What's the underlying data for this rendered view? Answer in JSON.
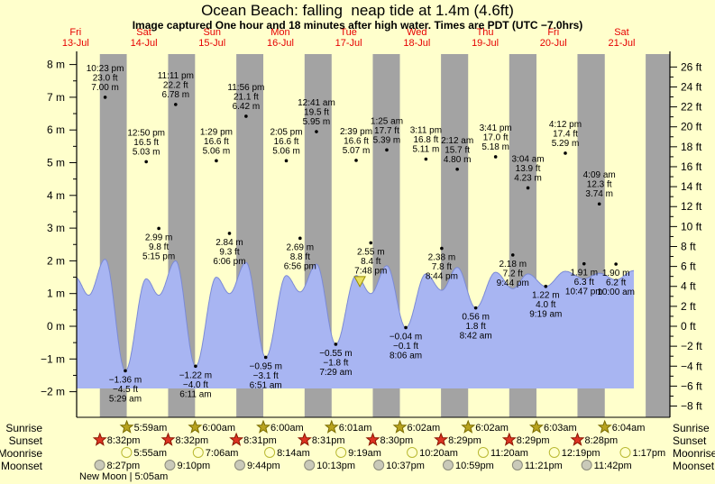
{
  "header": {
    "title": "Ocean Beach: falling  neap tide at 1.4m (4.6ft)",
    "subtitle": "Image captured One hour and 18 minutes after high water. Times are PDT (UTC −7.0hrs)"
  },
  "days": [
    {
      "label": "Fri",
      "date": "13-Jul"
    },
    {
      "label": "Sat",
      "date": "14-Jul"
    },
    {
      "label": "Sun",
      "date": "15-Jul"
    },
    {
      "label": "Mon",
      "date": "16-Jul"
    },
    {
      "label": "Tue",
      "date": "17-Jul"
    },
    {
      "label": "Wed",
      "date": "18-Jul"
    },
    {
      "label": "Thu",
      "date": "19-Jul"
    },
    {
      "label": "Fri",
      "date": "20-Jul"
    },
    {
      "label": "Sat",
      "date": "21-Jul"
    }
  ],
  "chart_data": {
    "type": "area",
    "y_axis_m": {
      "unit": "m",
      "ticks": [
        {
          "v": 8,
          "label": "8 m"
        },
        {
          "v": 7,
          "label": "7 m"
        },
        {
          "v": 6,
          "label": "6 m"
        },
        {
          "v": 5,
          "label": "5 m"
        },
        {
          "v": 4,
          "label": "4 m"
        },
        {
          "v": 3,
          "label": "3 m"
        },
        {
          "v": 2,
          "label": "2 m"
        },
        {
          "v": 1,
          "label": "1 m"
        },
        {
          "v": 0,
          "label": "0 m"
        },
        {
          "v": -1,
          "label": "−1 m"
        },
        {
          "v": -2,
          "label": "−2 m"
        }
      ]
    },
    "y_axis_ft": {
      "unit": "ft",
      "ticks": [
        {
          "v": 26,
          "label": "26 ft"
        },
        {
          "v": 24,
          "label": "24 ft"
        },
        {
          "v": 22,
          "label": "22 ft"
        },
        {
          "v": 20,
          "label": "20 ft"
        },
        {
          "v": 18,
          "label": "18 ft"
        },
        {
          "v": 16,
          "label": "16 ft"
        },
        {
          "v": 14,
          "label": "14 ft"
        },
        {
          "v": 12,
          "label": "12 ft"
        },
        {
          "v": 10,
          "label": "10 ft"
        },
        {
          "v": 8,
          "label": "8 ft"
        },
        {
          "v": 6,
          "label": "6 ft"
        },
        {
          "v": 4,
          "label": "4 ft"
        },
        {
          "v": 2,
          "label": "2 ft"
        },
        {
          "v": 0,
          "label": "0 ft"
        },
        {
          "v": -2,
          "label": "−2 ft"
        },
        {
          "v": -4,
          "label": "−4 ft"
        },
        {
          "v": -6,
          "label": "−6 ft"
        },
        {
          "v": -8,
          "label": "−8 ft"
        }
      ]
    },
    "tide_events": [
      {
        "type": "high",
        "day": 0,
        "time": "10:23 pm",
        "ft": "23.0 ft",
        "m": "7.00 m",
        "height_m": 7.0
      },
      {
        "type": "high",
        "day": 1,
        "time": "12:50 pm",
        "ft": "16.5 ft",
        "m": "5.03 m",
        "height_m": 5.03
      },
      {
        "type": "high",
        "day": 1,
        "time": "11:11 pm",
        "ft": "22.2 ft",
        "m": "6.78 m",
        "height_m": 6.78
      },
      {
        "type": "high",
        "day": 2,
        "time": "1:29 pm",
        "ft": "16.6 ft",
        "m": "5.06 m",
        "height_m": 5.06
      },
      {
        "type": "high",
        "day": 2,
        "time": "11:56 pm",
        "ft": "21.1 ft",
        "m": "6.42 m",
        "height_m": 6.42
      },
      {
        "type": "high",
        "day": 3,
        "time": "2:05 pm",
        "ft": "16.6 ft",
        "m": "5.06 m",
        "height_m": 5.06
      },
      {
        "type": "high",
        "day": 4,
        "time": "12:41 am",
        "ft": "19.5 ft",
        "m": "5.95 m",
        "height_m": 5.95
      },
      {
        "type": "high",
        "day": 4,
        "time": "2:39 pm",
        "ft": "16.6 ft",
        "m": "5.07 m",
        "height_m": 5.07
      },
      {
        "type": "high",
        "day": 5,
        "time": "1:25 am",
        "ft": "17.7 ft",
        "m": "5.39 m",
        "height_m": 5.39
      },
      {
        "type": "high",
        "day": 5,
        "time": "3:11 pm",
        "ft": "16.8 ft",
        "m": "5.11 m",
        "height_m": 5.11
      },
      {
        "type": "high",
        "day": 6,
        "time": "2:12 am",
        "ft": "15.7 ft",
        "m": "4.80 m",
        "height_m": 4.8
      },
      {
        "type": "high",
        "day": 6,
        "time": "3:41 pm",
        "ft": "17.0 ft",
        "m": "5.18 m",
        "height_m": 5.18
      },
      {
        "type": "high",
        "day": 7,
        "time": "3:04 am",
        "ft": "13.9 ft",
        "m": "4.23 m",
        "height_m": 4.23
      },
      {
        "type": "high",
        "day": 7,
        "time": "4:12 pm",
        "ft": "17.4 ft",
        "m": "5.29 m",
        "height_m": 5.29
      },
      {
        "type": "high",
        "day": 8,
        "time": "4:09 am",
        "ft": "12.3 ft",
        "m": "3.74 m",
        "height_m": 3.74
      },
      {
        "type": "low",
        "day": 1,
        "time": "5:29 am",
        "ft": "−4.5 ft",
        "m": "−1.36 m",
        "height_m": -1.36
      },
      {
        "type": "low",
        "day": 1,
        "time": "5:15 pm",
        "ft": "9.8 ft",
        "m": "2.99 m",
        "height_m": 2.99
      },
      {
        "type": "low",
        "day": 2,
        "time": "6:11 am",
        "ft": "−4.0 ft",
        "m": "−1.22 m",
        "height_m": -1.22
      },
      {
        "type": "low",
        "day": 2,
        "time": "6:06 pm",
        "ft": "9.3 ft",
        "m": "2.84 m",
        "height_m": 2.84
      },
      {
        "type": "low",
        "day": 3,
        "time": "6:51 am",
        "ft": "−3.1 ft",
        "m": "−0.95 m",
        "height_m": -0.95
      },
      {
        "type": "low",
        "day": 3,
        "time": "6:56 pm",
        "ft": "8.8 ft",
        "m": "2.69 m",
        "height_m": 2.69
      },
      {
        "type": "low",
        "day": 4,
        "time": "7:29 am",
        "ft": "−1.8 ft",
        "m": "−0.55 m",
        "height_m": -0.55
      },
      {
        "type": "low",
        "day": 4,
        "time": "7:48 pm",
        "ft": "8.4 ft",
        "m": "2.55 m",
        "height_m": 2.55
      },
      {
        "type": "low",
        "day": 5,
        "time": "8:06 am",
        "ft": "−0.1 ft",
        "m": "−0.04 m",
        "height_m": -0.04
      },
      {
        "type": "low",
        "day": 5,
        "time": "8:44 pm",
        "ft": "7.8 ft",
        "m": "2.38 m",
        "height_m": 2.38
      },
      {
        "type": "low",
        "day": 6,
        "time": "8:42 am",
        "ft": "1.8 ft",
        "m": "0.56 m",
        "height_m": 0.56
      },
      {
        "type": "low",
        "day": 6,
        "time": "9:44 pm",
        "ft": "7.2 ft",
        "m": "2.18 m",
        "height_m": 2.18
      },
      {
        "type": "low",
        "day": 7,
        "time": "9:19 am",
        "ft": "4.0 ft",
        "m": "1.22 m",
        "height_m": 1.22
      },
      {
        "type": "low",
        "day": 7,
        "time": "10:47 pm",
        "ft": "6.3 ft",
        "m": "1.91 m",
        "height_m": 1.91
      },
      {
        "type": "low",
        "day": 8,
        "time": "10:00 am",
        "ft": "6.2 ft",
        "m": "1.90 m",
        "height_m": 1.9
      }
    ],
    "current_marker": {
      "t_hours": 111.95,
      "height_m": 1.38
    },
    "curve_extremes": [
      [
        11.9,
        1.5
      ],
      [
        16.6,
        0.95
      ],
      [
        22.38,
        2.05
      ],
      [
        29.48,
        -1.36
      ],
      [
        36.83,
        1.45
      ],
      [
        41.25,
        0.95
      ],
      [
        47.18,
        2.0
      ],
      [
        54.18,
        -1.22
      ],
      [
        61.48,
        1.5
      ],
      [
        66.1,
        1.0
      ],
      [
        71.93,
        1.95
      ],
      [
        78.85,
        -0.95
      ],
      [
        86.08,
        1.55
      ],
      [
        90.93,
        1.05
      ],
      [
        96.68,
        1.9
      ],
      [
        103.48,
        -0.55
      ],
      [
        110.65,
        1.55
      ],
      [
        115.8,
        1.0
      ],
      [
        121.42,
        1.85
      ],
      [
        128.1,
        -0.04
      ],
      [
        135.18,
        1.6
      ],
      [
        140.73,
        1.1
      ],
      [
        146.2,
        1.8
      ],
      [
        152.7,
        0.56
      ],
      [
        159.68,
        1.65
      ],
      [
        165.73,
        1.15
      ],
      [
        171.07,
        1.6
      ],
      [
        177.32,
        1.22
      ],
      [
        184.2,
        1.68
      ],
      [
        190.78,
        1.45
      ],
      [
        196.15,
        1.62
      ],
      [
        202.0,
        1.42
      ],
      [
        208.3,
        1.7
      ]
    ],
    "night_bands": [
      [
        20.53,
        29.98
      ],
      [
        44.53,
        54.0
      ],
      [
        68.52,
        78.0
      ],
      [
        92.52,
        102.02
      ],
      [
        116.5,
        126.03
      ],
      [
        140.48,
        150.03
      ],
      [
        164.48,
        174.05
      ],
      [
        188.47,
        198.07
      ],
      [
        212.45,
        221.0
      ]
    ]
  },
  "almanac": {
    "rows": [
      {
        "name": "Sunrise",
        "icon": "sunrise-star",
        "events": [
          {
            "day": 1,
            "time": "5:59am"
          },
          {
            "day": 2,
            "time": "6:00am"
          },
          {
            "day": 3,
            "time": "6:00am"
          },
          {
            "day": 4,
            "time": "6:01am"
          },
          {
            "day": 5,
            "time": "6:02am"
          },
          {
            "day": 6,
            "time": "6:02am"
          },
          {
            "day": 7,
            "time": "6:03am"
          },
          {
            "day": 8,
            "time": "6:04am"
          }
        ]
      },
      {
        "name": "Sunset",
        "icon": "sunset-star",
        "events": [
          {
            "day": 0,
            "time": "8:32pm"
          },
          {
            "day": 1,
            "time": "8:32pm"
          },
          {
            "day": 2,
            "time": "8:31pm"
          },
          {
            "day": 3,
            "time": "8:31pm"
          },
          {
            "day": 4,
            "time": "8:30pm"
          },
          {
            "day": 5,
            "time": "8:29pm"
          },
          {
            "day": 6,
            "time": "8:29pm"
          },
          {
            "day": 7,
            "time": "8:28pm"
          }
        ]
      },
      {
        "name": "Moonrise",
        "icon": "moonrise-circle",
        "events": [
          {
            "day": 1,
            "time": "5:55am"
          },
          {
            "day": 2,
            "time": "7:06am"
          },
          {
            "day": 3,
            "time": "8:14am"
          },
          {
            "day": 4,
            "time": "9:19am"
          },
          {
            "day": 5,
            "time": "10:20am"
          },
          {
            "day": 6,
            "time": "11:20am"
          },
          {
            "day": 7,
            "time": "12:19pm"
          },
          {
            "day": 8,
            "time": "1:17pm"
          }
        ]
      },
      {
        "name": "Moonset",
        "icon": "moonset-circle",
        "events": [
          {
            "day": 0,
            "time": "8:27pm"
          },
          {
            "day": 1,
            "time": "9:10pm"
          },
          {
            "day": 2,
            "time": "9:44pm"
          },
          {
            "day": 3,
            "time": "10:13pm"
          },
          {
            "day": 4,
            "time": "10:37pm"
          },
          {
            "day": 5,
            "time": "10:59pm"
          },
          {
            "day": 6,
            "time": "11:21pm"
          },
          {
            "day": 7,
            "time": "11:42pm"
          }
        ]
      }
    ],
    "note": "New Moon | 5:05am"
  },
  "colors": {
    "background": "#ffffcc",
    "night_band": "#a3a3a3",
    "water": "#a8b5f2",
    "water_edge": "#7b8ad6",
    "day_label": "#e60000",
    "axis": "#000000",
    "sunrise_star": "#b8a31e",
    "sunrise_star_edge": "#7a6c00",
    "sunset_star": "#dd3322",
    "sunset_star_edge": "#8a1500",
    "moonrise_circle": "#ffffcc",
    "moonrise_circle_edge": "#b9b932",
    "moonset_circle": "#c9c9b9",
    "moonset_circle_edge": "#8a8a7a",
    "marker_fill": "#e8df60",
    "marker_edge": "#9a8f00"
  }
}
